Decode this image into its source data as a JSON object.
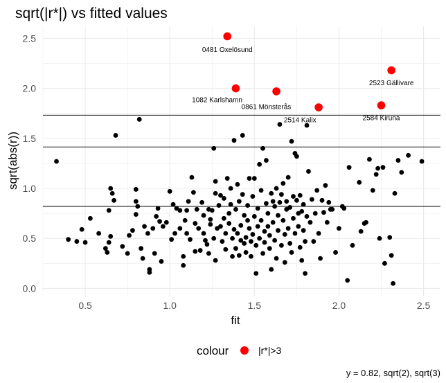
{
  "chart_data": {
    "type": "scatter",
    "title": "sqrt(|r*|) vs fitted values",
    "xlabel": "fit",
    "ylabel": "sqrt(abs(r))",
    "xlim": [
      0.25,
      2.6
    ],
    "ylim": [
      -0.08,
      2.62
    ],
    "x_ticks": [
      0.5,
      1.0,
      1.5,
      2.0,
      2.5
    ],
    "x_tick_labels": [
      "0.5",
      "1.0",
      "1.5",
      "2.0",
      "2.5"
    ],
    "y_ticks": [
      0.0,
      0.5,
      1.0,
      1.5,
      2.0,
      2.5
    ],
    "y_tick_labels": [
      "0.0",
      "0.5",
      "1.0",
      "1.5",
      "2.0",
      "2.5"
    ],
    "grid": true,
    "reference_lines": [
      0.82,
      1.414,
      1.732
    ],
    "caption": "y = 0.82, sqrt(2), sqrt(3)",
    "legend": {
      "title": "colour",
      "entries": [
        {
          "label": "|r*|>3",
          "color": "#ff0000"
        }
      ],
      "position": "bottom"
    },
    "colors": {
      "points": "#000000",
      "highlight": "#ff0000",
      "grid": "#ebebeb"
    },
    "points": [
      [
        0.33,
        1.27
      ],
      [
        0.4,
        0.49
      ],
      [
        0.45,
        0.47
      ],
      [
        0.48,
        0.59
      ],
      [
        0.5,
        0.46
      ],
      [
        0.53,
        0.7
      ],
      [
        0.58,
        0.55
      ],
      [
        0.62,
        0.4
      ],
      [
        0.63,
        0.36
      ],
      [
        0.64,
        0.46
      ],
      [
        0.65,
        0.52
      ],
      [
        0.64,
        0.78
      ],
      [
        0.65,
        1.0
      ],
      [
        0.66,
        0.95
      ],
      [
        0.67,
        0.88
      ],
      [
        0.68,
        1.53
      ],
      [
        0.72,
        0.42
      ],
      [
        0.75,
        0.35
      ],
      [
        0.76,
        0.53
      ],
      [
        0.78,
        0.58
      ],
      [
        0.8,
        0.74
      ],
      [
        0.8,
        0.99
      ],
      [
        0.8,
        0.87
      ],
      [
        0.81,
        0.82
      ],
      [
        0.82,
        1.69
      ],
      [
        0.83,
        0.4
      ],
      [
        0.84,
        0.3
      ],
      [
        0.85,
        0.62
      ],
      [
        0.87,
        0.55
      ],
      [
        0.88,
        0.19
      ],
      [
        0.88,
        0.16
      ],
      [
        0.9,
        0.6
      ],
      [
        0.91,
        0.35
      ],
      [
        0.92,
        0.72
      ],
      [
        0.93,
        0.8
      ],
      [
        0.94,
        0.67
      ],
      [
        0.95,
        0.27
      ],
      [
        0.96,
        0.62
      ],
      [
        0.98,
        0.66
      ],
      [
        1.0,
        0.97
      ],
      [
        1.01,
        0.49
      ],
      [
        1.02,
        0.84
      ],
      [
        1.03,
        0.55
      ],
      [
        1.04,
        0.8
      ],
      [
        1.06,
        0.78
      ],
      [
        1.06,
        0.6
      ],
      [
        1.08,
        0.32
      ],
      [
        1.08,
        0.23
      ],
      [
        1.09,
        0.68
      ],
      [
        1.1,
        0.55
      ],
      [
        1.1,
        0.78
      ],
      [
        1.11,
        0.87
      ],
      [
        1.12,
        0.49
      ],
      [
        1.13,
        1.11
      ],
      [
        1.14,
        0.96
      ],
      [
        1.15,
        0.37
      ],
      [
        1.15,
        0.65
      ],
      [
        1.16,
        0.79
      ],
      [
        1.17,
        0.6
      ],
      [
        1.18,
        0.38
      ],
      [
        1.19,
        0.86
      ],
      [
        1.2,
        0.73
      ],
      [
        1.2,
        0.55
      ],
      [
        1.21,
        0.48
      ],
      [
        1.22,
        0.44
      ],
      [
        1.23,
        0.79
      ],
      [
        1.23,
        0.35
      ],
      [
        1.24,
        0.64
      ],
      [
        1.24,
        0.69
      ],
      [
        1.25,
        0.78
      ],
      [
        1.26,
        1.4
      ],
      [
        1.26,
        0.5
      ],
      [
        1.27,
        0.28
      ],
      [
        1.27,
        1.07
      ],
      [
        1.27,
        0.95
      ],
      [
        1.28,
        0.6
      ],
      [
        1.29,
        0.83
      ],
      [
        1.3,
        0.93
      ],
      [
        1.3,
        0.62
      ],
      [
        1.31,
        0.47
      ],
      [
        1.32,
        0.7
      ],
      [
        1.32,
        0.9
      ],
      [
        1.33,
        0.55
      ],
      [
        1.33,
        0.39
      ],
      [
        1.34,
        1.1
      ],
      [
        1.35,
        0.75
      ],
      [
        1.35,
        0.65
      ],
      [
        1.36,
        1.0
      ],
      [
        1.36,
        0.84
      ],
      [
        1.37,
        0.5
      ],
      [
        1.37,
        0.32
      ],
      [
        1.38,
        0.59
      ],
      [
        1.38,
        1.48
      ],
      [
        1.39,
        0.79
      ],
      [
        1.39,
        0.4
      ],
      [
        1.4,
        1.04
      ],
      [
        1.4,
        0.55
      ],
      [
        1.41,
        0.87
      ],
      [
        1.41,
        0.33
      ],
      [
        1.42,
        0.63
      ],
      [
        1.42,
        0.48
      ],
      [
        1.43,
        0.94
      ],
      [
        1.43,
        1.53
      ],
      [
        1.44,
        0.73
      ],
      [
        1.44,
        0.45
      ],
      [
        1.45,
        0.51
      ],
      [
        1.45,
        0.36
      ],
      [
        1.46,
        0.68
      ],
      [
        1.46,
        0.83
      ],
      [
        1.47,
        1.1
      ],
      [
        1.47,
        0.6
      ],
      [
        1.48,
        0.47
      ],
      [
        1.48,
        0.32
      ],
      [
        1.49,
        0.54
      ],
      [
        1.49,
        0.92
      ],
      [
        1.5,
        0.72
      ],
      [
        1.5,
        1.1
      ],
      [
        1.51,
        0.43
      ],
      [
        1.51,
        0.15
      ],
      [
        1.52,
        0.62
      ],
      [
        1.52,
        0.8
      ],
      [
        1.53,
        1.24
      ],
      [
        1.53,
        0.5
      ],
      [
        1.54,
        0.98
      ],
      [
        1.54,
        0.68
      ],
      [
        1.55,
        1.4
      ],
      [
        1.55,
        0.35
      ],
      [
        1.56,
        0.57
      ],
      [
        1.56,
        0.46
      ],
      [
        1.57,
        0.85
      ],
      [
        1.57,
        1.28
      ],
      [
        1.58,
        0.75
      ],
      [
        1.58,
        0.62
      ],
      [
        1.59,
        0.4
      ],
      [
        1.59,
        0.53
      ],
      [
        1.6,
        0.95
      ],
      [
        1.6,
        0.19
      ],
      [
        1.61,
        0.87
      ],
      [
        1.61,
        0.66
      ],
      [
        1.62,
        0.48
      ],
      [
        1.62,
        0.82
      ],
      [
        1.63,
        1.0
      ],
      [
        1.63,
        0.3
      ],
      [
        1.64,
        0.73
      ],
      [
        1.64,
        0.58
      ],
      [
        1.65,
        1.64
      ],
      [
        1.65,
        0.86
      ],
      [
        1.66,
        0.43
      ],
      [
        1.66,
        0.94
      ],
      [
        1.67,
        0.68
      ],
      [
        1.67,
        1.05
      ],
      [
        1.68,
        0.54
      ],
      [
        1.68,
        0.26
      ],
      [
        1.69,
        0.87
      ],
      [
        1.69,
        0.79
      ],
      [
        1.7,
        1.11
      ],
      [
        1.7,
        0.6
      ],
      [
        1.71,
        0.45
      ],
      [
        1.71,
        0.81
      ],
      [
        1.72,
        1.47
      ],
      [
        1.72,
        0.36
      ],
      [
        1.73,
        0.92
      ],
      [
        1.73,
        0.7
      ],
      [
        1.74,
        1.35
      ],
      [
        1.74,
        0.55
      ],
      [
        1.75,
        0.88
      ],
      [
        1.75,
        1.32
      ],
      [
        1.76,
        0.75
      ],
      [
        1.76,
        0.62
      ],
      [
        1.77,
        0.41
      ],
      [
        1.77,
        0.93
      ],
      [
        1.78,
        0.28
      ],
      [
        1.78,
        0.77
      ],
      [
        1.79,
        0.58
      ],
      [
        1.79,
        0.84
      ],
      [
        1.8,
        0.47
      ],
      [
        1.8,
        0.15
      ],
      [
        1.81,
        0.72
      ],
      [
        1.81,
        1.63
      ],
      [
        1.82,
        1.17
      ],
      [
        1.83,
        0.66
      ],
      [
        1.84,
        0.89
      ],
      [
        1.85,
        0.47
      ],
      [
        1.86,
        0.75
      ],
      [
        1.87,
        0.98
      ],
      [
        1.88,
        0.55
      ],
      [
        1.89,
        0.3
      ],
      [
        1.9,
        0.88
      ],
      [
        1.91,
        0.76
      ],
      [
        1.92,
        1.03
      ],
      [
        1.93,
        0.66
      ],
      [
        1.94,
        0.86
      ],
      [
        1.95,
        0.79
      ],
      [
        1.96,
        0.79
      ],
      [
        1.98,
        0.36
      ],
      [
        2.0,
        0.6
      ],
      [
        2.02,
        0.82
      ],
      [
        2.03,
        0.8
      ],
      [
        2.05,
        0.08
      ],
      [
        2.06,
        1.21
      ],
      [
        2.08,
        0.43
      ],
      [
        2.12,
        1.06
      ],
      [
        2.13,
        0.57
      ],
      [
        2.15,
        0.65
      ],
      [
        2.16,
        0.66
      ],
      [
        2.18,
        1.29
      ],
      [
        2.2,
        0.98
      ],
      [
        2.22,
        1.14
      ],
      [
        2.23,
        1.2
      ],
      [
        2.24,
        0.5
      ],
      [
        2.26,
        1.21
      ],
      [
        2.27,
        0.25
      ],
      [
        2.3,
        0.51
      ],
      [
        2.31,
        0.33
      ],
      [
        2.32,
        0.05
      ],
      [
        2.33,
        0.95
      ],
      [
        2.35,
        1.28
      ],
      [
        2.37,
        1.16
      ],
      [
        2.41,
        1.33
      ],
      [
        2.49,
        1.27
      ]
    ],
    "highlighted": [
      {
        "x": 1.34,
        "y": 2.52,
        "label": "0481 Oxelösund",
        "label_dx": 0,
        "label_dy": -0.13
      },
      {
        "x": 1.39,
        "y": 2.0,
        "label": "1082 Karlshamn",
        "label_dx": -0.11,
        "label_dy": -0.11
      },
      {
        "x": 1.63,
        "y": 1.97,
        "label": "0861 Mönsterås",
        "label_dx": -0.06,
        "label_dy": -0.15
      },
      {
        "x": 1.88,
        "y": 1.81,
        "label": "2514 Kalix",
        "label_dx": -0.11,
        "label_dy": -0.12
      },
      {
        "x": 2.25,
        "y": 1.83,
        "label": "2584 Kiruna",
        "label_dx": 0.0,
        "label_dy": -0.12
      },
      {
        "x": 2.31,
        "y": 2.18,
        "label": "2523 Gällivare",
        "label_dx": 0.0,
        "label_dy": -0.12
      }
    ]
  }
}
